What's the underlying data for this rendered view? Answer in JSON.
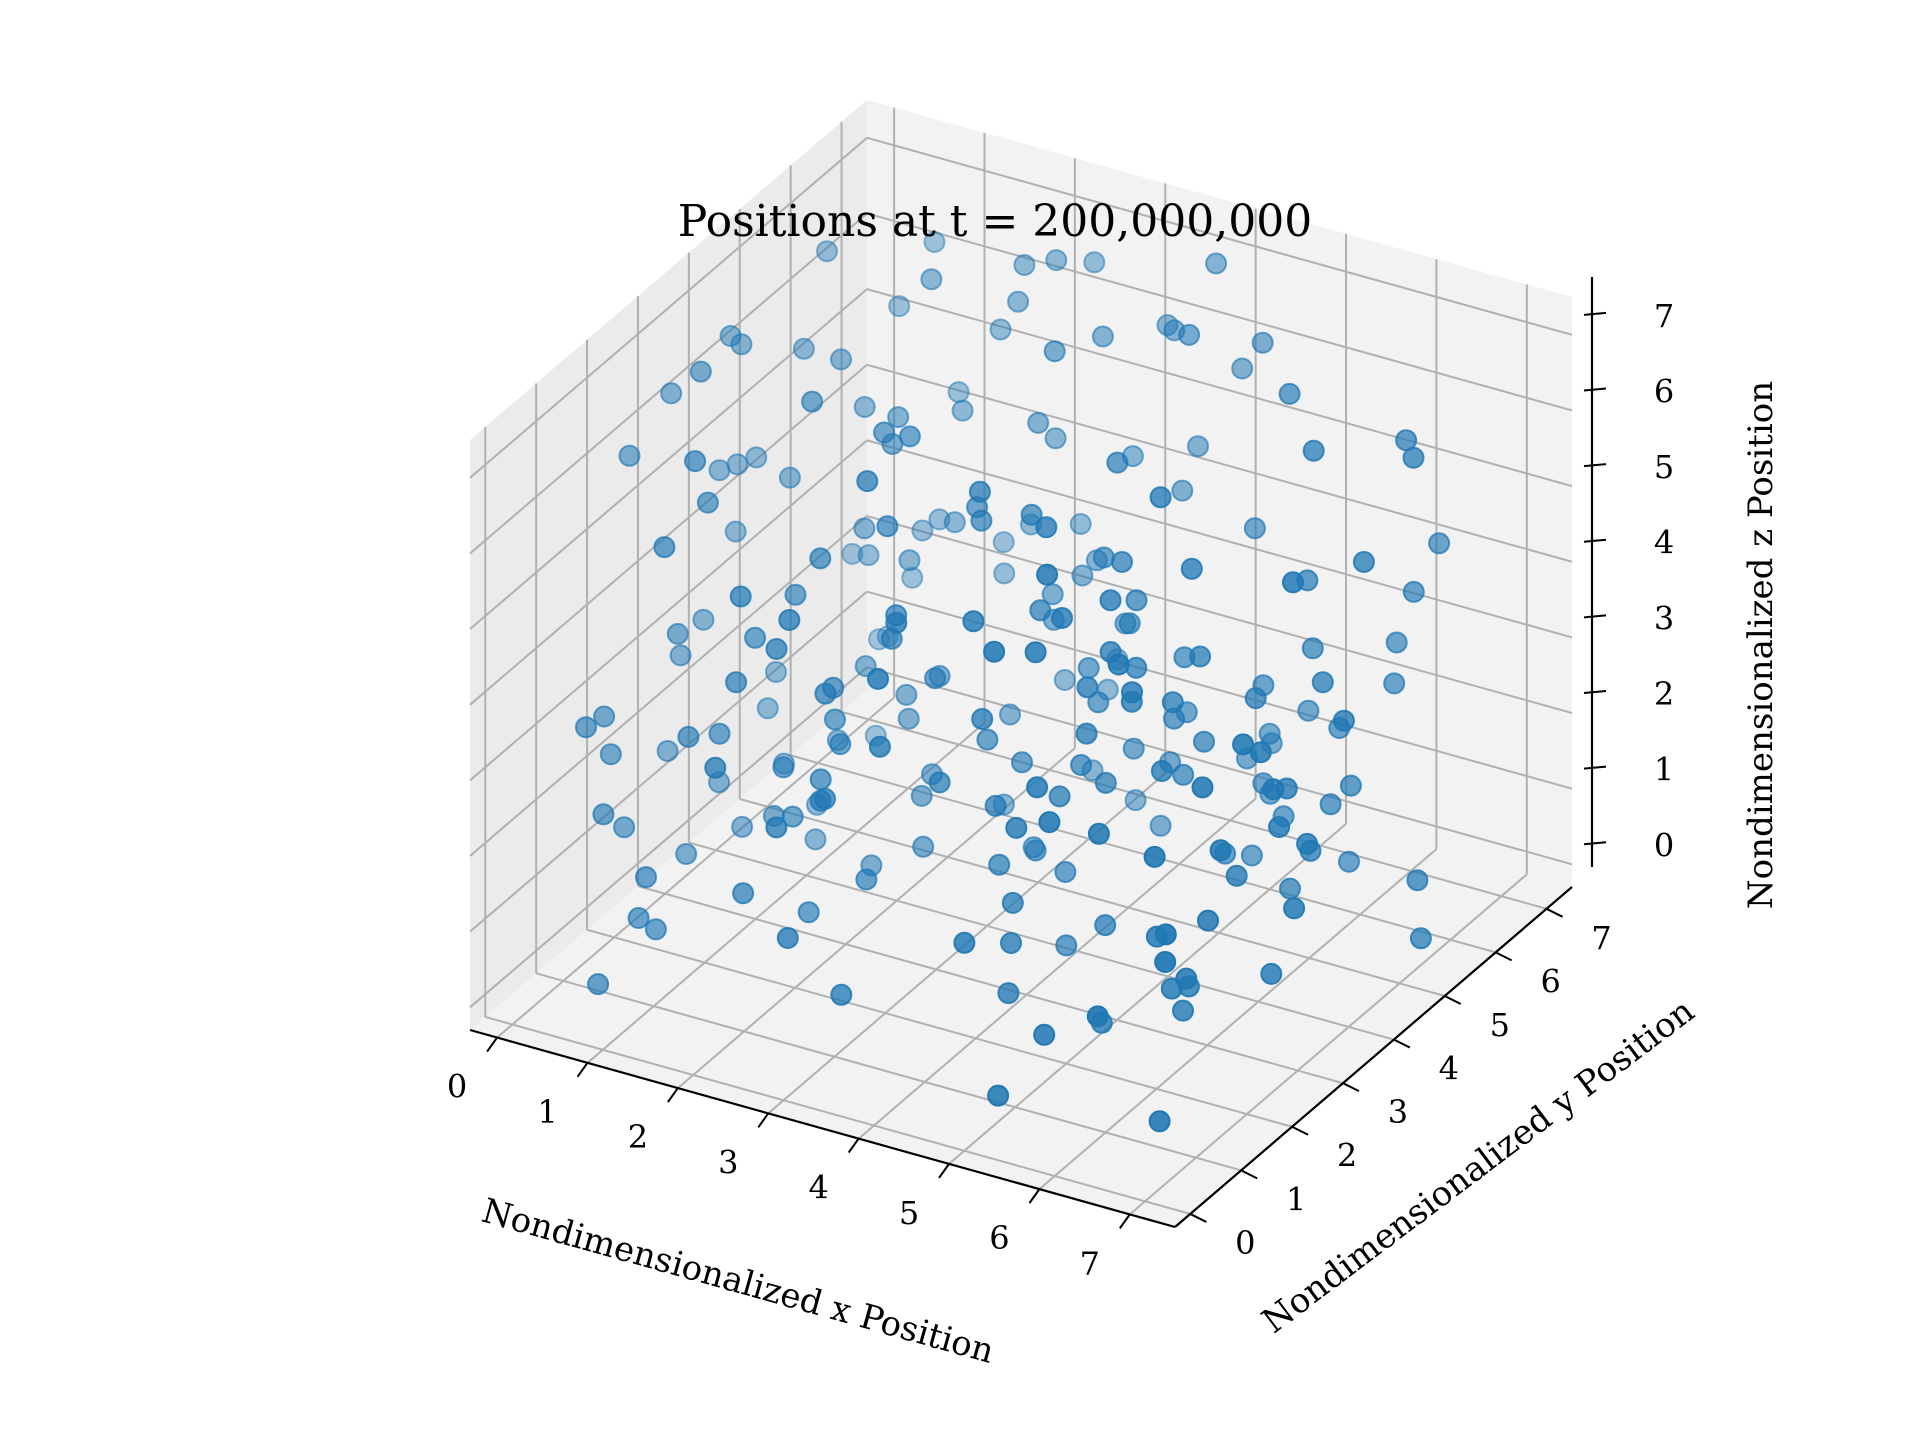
{
  "chart_data": {
    "type": "scatter",
    "projection": "3d",
    "title": "Positions at t = 200,000,000",
    "xlabel": "Nondimensionalized x Position",
    "ylabel": "Nondimensionalized y Position",
    "zlabel": "Nondimensionalized z Position",
    "xlim": [
      -0.3,
      7.5
    ],
    "ylim": [
      -0.3,
      7.5
    ],
    "zlim": [
      -0.3,
      7.5
    ],
    "xticks": [
      "0",
      "1",
      "2",
      "3",
      "4",
      "5",
      "6",
      "7"
    ],
    "yticks": [
      "0",
      "1",
      "2",
      "3",
      "4",
      "5",
      "6",
      "7"
    ],
    "zticks": [
      "0",
      "1",
      "2",
      "3",
      "4",
      "5",
      "6",
      "7"
    ],
    "grid": true,
    "marker_color": "#1f77b4",
    "point_count": 256,
    "distribution": "roughly uniform random over 0–7 on each axis",
    "points": []
  }
}
